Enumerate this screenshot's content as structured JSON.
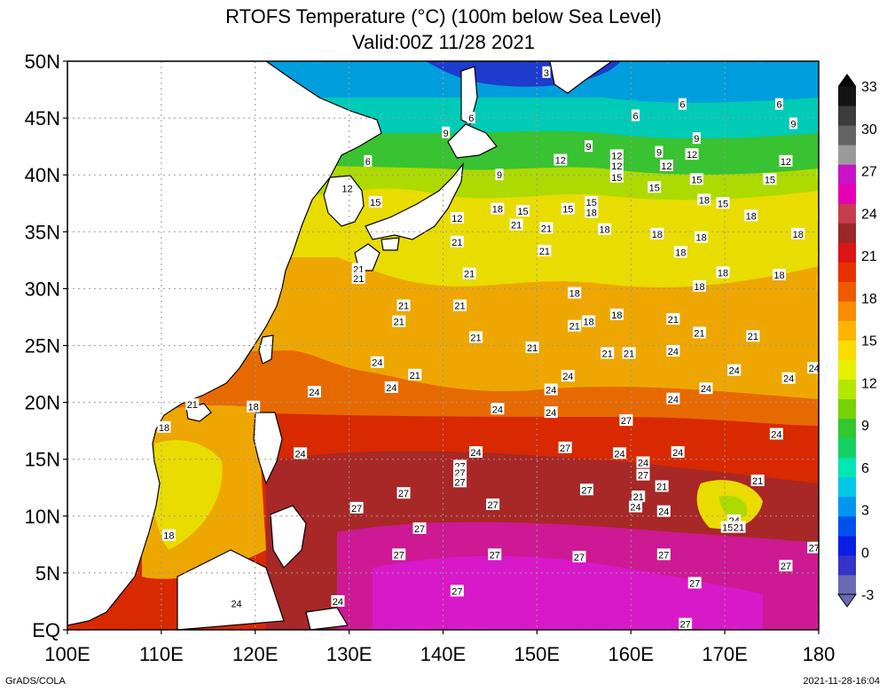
{
  "title_line1": "RTOFS Temperature (°C) (100m below Sea Level)",
  "title_line2": "Valid:00Z 11/28 2021",
  "credit": "GrADS/COLA",
  "timestamp": "2021-11-28-16:04",
  "map": {
    "lon_range": [
      100,
      180
    ],
    "lat_range": [
      0,
      50
    ],
    "lon_ticks": [
      "100E",
      "110E",
      "120E",
      "130E",
      "140E",
      "150E",
      "160E",
      "170E",
      "180"
    ],
    "lat_ticks": [
      "EQ",
      "5N",
      "10N",
      "15N",
      "20N",
      "25N",
      "30N",
      "35N",
      "40N",
      "45N",
      "50N"
    ],
    "grid": "dotted"
  },
  "colorbar": {
    "labels": [
      "-3",
      "0",
      "3",
      "6",
      "9",
      "12",
      "15",
      "18",
      "21",
      "24",
      "27",
      "30",
      "33"
    ],
    "colors": [
      "#6a6ab4",
      "#3434c8",
      "#0a1ee6",
      "#0050f0",
      "#0096f0",
      "#00c8e6",
      "#00e6b4",
      "#14d264",
      "#32c832",
      "#78d20a",
      "#b4e600",
      "#e6f000",
      "#fadc00",
      "#ffb400",
      "#fa8c00",
      "#f05a00",
      "#e63200",
      "#dc1414",
      "#9b2828",
      "#c83c50",
      "#e600b4",
      "#c814c8",
      "#9b9b9b",
      "#646464",
      "#3c3c3c",
      "#141414"
    ]
  },
  "contour_labels": [
    {
      "v": "3",
      "lon": 151.0,
      "lat": 49.0
    },
    {
      "v": "6",
      "lon": 143.0,
      "lat": 45.0
    },
    {
      "v": "6",
      "lon": 160.5,
      "lat": 45.2
    },
    {
      "v": "6",
      "lon": 165.5,
      "lat": 46.2
    },
    {
      "v": "6",
      "lon": 175.8,
      "lat": 46.2
    },
    {
      "v": "9",
      "lon": 177.3,
      "lat": 44.5
    },
    {
      "v": "9",
      "lon": 140.3,
      "lat": 43.7
    },
    {
      "v": "6",
      "lon": 132.0,
      "lat": 41.2
    },
    {
      "v": "9",
      "lon": 155.5,
      "lat": 42.5
    },
    {
      "v": "9",
      "lon": 163.0,
      "lat": 42.0
    },
    {
      "v": "9",
      "lon": 167.0,
      "lat": 43.2
    },
    {
      "v": "12",
      "lon": 158.5,
      "lat": 41.7
    },
    {
      "v": "12",
      "lon": 166.5,
      "lat": 41.8
    },
    {
      "v": "12",
      "lon": 176.5,
      "lat": 41.2
    },
    {
      "v": "12",
      "lon": 152.5,
      "lat": 41.3
    },
    {
      "v": "12",
      "lon": 158.5,
      "lat": 40.8
    },
    {
      "v": "12",
      "lon": 163.8,
      "lat": 40.8
    },
    {
      "v": "9",
      "lon": 146.0,
      "lat": 40.0
    },
    {
      "v": "15",
      "lon": 158.5,
      "lat": 39.8
    },
    {
      "v": "15",
      "lon": 167.0,
      "lat": 39.6
    },
    {
      "v": "15",
      "lon": 174.8,
      "lat": 39.6
    },
    {
      "v": "15",
      "lon": 162.5,
      "lat": 38.9
    },
    {
      "v": "12",
      "lon": 129.8,
      "lat": 38.8
    },
    {
      "v": "15",
      "lon": 132.8,
      "lat": 37.6
    },
    {
      "v": "15",
      "lon": 155.8,
      "lat": 37.6
    },
    {
      "v": "18",
      "lon": 167.8,
      "lat": 37.8
    },
    {
      "v": "15",
      "lon": 169.8,
      "lat": 37.5
    },
    {
      "v": "18",
      "lon": 145.8,
      "lat": 37.0
    },
    {
      "v": "15",
      "lon": 148.5,
      "lat": 36.8
    },
    {
      "v": "15",
      "lon": 153.3,
      "lat": 37.0
    },
    {
      "v": "18",
      "lon": 155.8,
      "lat": 36.7
    },
    {
      "v": "18",
      "lon": 172.8,
      "lat": 36.4
    },
    {
      "v": "12",
      "lon": 141.5,
      "lat": 36.2
    },
    {
      "v": "21",
      "lon": 147.8,
      "lat": 35.6
    },
    {
      "v": "21",
      "lon": 151.0,
      "lat": 35.3
    },
    {
      "v": "18",
      "lon": 157.2,
      "lat": 35.2
    },
    {
      "v": "18",
      "lon": 162.8,
      "lat": 34.8
    },
    {
      "v": "18",
      "lon": 167.5,
      "lat": 34.5
    },
    {
      "v": "18",
      "lon": 177.8,
      "lat": 34.8
    },
    {
      "v": "21",
      "lon": 141.5,
      "lat": 34.1
    },
    {
      "v": "21",
      "lon": 150.8,
      "lat": 33.3
    },
    {
      "v": "18",
      "lon": 165.3,
      "lat": 33.2
    },
    {
      "v": "21",
      "lon": 131.0,
      "lat": 31.7
    },
    {
      "v": "21",
      "lon": 131.0,
      "lat": 30.9
    },
    {
      "v": "21",
      "lon": 142.8,
      "lat": 31.3
    },
    {
      "v": "18",
      "lon": 169.8,
      "lat": 31.4
    },
    {
      "v": "18",
      "lon": 175.8,
      "lat": 31.2
    },
    {
      "v": "18",
      "lon": 167.3,
      "lat": 30.2
    },
    {
      "v": "18",
      "lon": 154.0,
      "lat": 29.6
    },
    {
      "v": "21",
      "lon": 135.8,
      "lat": 28.5
    },
    {
      "v": "21",
      "lon": 141.8,
      "lat": 28.5
    },
    {
      "v": "21",
      "lon": 135.3,
      "lat": 27.1
    },
    {
      "v": "18",
      "lon": 158.5,
      "lat": 27.7
    },
    {
      "v": "21",
      "lon": 164.5,
      "lat": 27.3
    },
    {
      "v": "18",
      "lon": 155.5,
      "lat": 27.1
    },
    {
      "v": "21",
      "lon": 154.0,
      "lat": 26.7
    },
    {
      "v": "21",
      "lon": 167.3,
      "lat": 26.1
    },
    {
      "v": "21",
      "lon": 173.0,
      "lat": 25.8
    },
    {
      "v": "21",
      "lon": 143.5,
      "lat": 25.7
    },
    {
      "v": "21",
      "lon": 149.5,
      "lat": 24.8
    },
    {
      "v": "21",
      "lon": 157.5,
      "lat": 24.3
    },
    {
      "v": "21",
      "lon": 159.8,
      "lat": 24.3
    },
    {
      "v": "24",
      "lon": 164.5,
      "lat": 24.5
    },
    {
      "v": "24",
      "lon": 133.0,
      "lat": 23.5
    },
    {
      "v": "21",
      "lon": 137.0,
      "lat": 22.4
    },
    {
      "v": "24",
      "lon": 153.3,
      "lat": 22.3
    },
    {
      "v": "24",
      "lon": 171.0,
      "lat": 22.8
    },
    {
      "v": "24",
      "lon": 179.5,
      "lat": 23.0
    },
    {
      "v": "24",
      "lon": 176.8,
      "lat": 22.1
    },
    {
      "v": "24",
      "lon": 134.5,
      "lat": 21.3
    },
    {
      "v": "24",
      "lon": 151.5,
      "lat": 21.1
    },
    {
      "v": "24",
      "lon": 168.0,
      "lat": 21.2
    },
    {
      "v": "24",
      "lon": 126.3,
      "lat": 20.9
    },
    {
      "v": "24",
      "lon": 164.5,
      "lat": 20.3
    },
    {
      "v": "21",
      "lon": 113.3,
      "lat": 19.8
    },
    {
      "v": "18",
      "lon": 119.8,
      "lat": 19.6
    },
    {
      "v": "24",
      "lon": 145.8,
      "lat": 19.4
    },
    {
      "v": "24",
      "lon": 151.5,
      "lat": 19.1
    },
    {
      "v": "18",
      "lon": 110.3,
      "lat": 17.8
    },
    {
      "v": "27",
      "lon": 159.5,
      "lat": 18.4
    },
    {
      "v": "24",
      "lon": 175.5,
      "lat": 17.2
    },
    {
      "v": "24",
      "lon": 124.8,
      "lat": 15.5
    },
    {
      "v": "24",
      "lon": 143.5,
      "lat": 15.6
    },
    {
      "v": "27",
      "lon": 153.0,
      "lat": 16.0
    },
    {
      "v": "24",
      "lon": 158.8,
      "lat": 15.5
    },
    {
      "v": "24",
      "lon": 165.0,
      "lat": 15.6
    },
    {
      "v": "27",
      "lon": 141.8,
      "lat": 14.4
    },
    {
      "v": "24",
      "lon": 161.3,
      "lat": 14.7
    },
    {
      "v": "27",
      "lon": 141.8,
      "lat": 13.8
    },
    {
      "v": "27",
      "lon": 161.3,
      "lat": 13.6
    },
    {
      "v": "27",
      "lon": 141.8,
      "lat": 13.0
    },
    {
      "v": "21",
      "lon": 163.3,
      "lat": 12.6
    },
    {
      "v": "27",
      "lon": 135.8,
      "lat": 12.0
    },
    {
      "v": "27",
      "lon": 155.3,
      "lat": 12.3
    },
    {
      "v": "21",
      "lon": 160.8,
      "lat": 11.7
    },
    {
      "v": "21",
      "lon": 173.5,
      "lat": 13.1
    },
    {
      "v": "27",
      "lon": 130.8,
      "lat": 10.7
    },
    {
      "v": "27",
      "lon": 145.3,
      "lat": 11.0
    },
    {
      "v": "24",
      "lon": 160.5,
      "lat": 10.8
    },
    {
      "v": "24",
      "lon": 163.5,
      "lat": 10.4
    },
    {
      "v": "24",
      "lon": 171.0,
      "lat": 9.6
    },
    {
      "v": "15",
      "lon": 170.3,
      "lat": 9.0
    },
    {
      "v": "21",
      "lon": 171.5,
      "lat": 9.0
    },
    {
      "v": "27",
      "lon": 137.5,
      "lat": 8.9
    },
    {
      "v": "18",
      "lon": 110.8,
      "lat": 8.3
    },
    {
      "v": "27",
      "lon": 135.3,
      "lat": 6.6
    },
    {
      "v": "27",
      "lon": 145.5,
      "lat": 6.6
    },
    {
      "v": "27",
      "lon": 154.5,
      "lat": 6.4
    },
    {
      "v": "27",
      "lon": 163.5,
      "lat": 6.6
    },
    {
      "v": "27",
      "lon": 179.5,
      "lat": 7.2
    },
    {
      "v": "27",
      "lon": 176.5,
      "lat": 5.6
    },
    {
      "v": "27",
      "lon": 166.8,
      "lat": 4.1
    },
    {
      "v": "27",
      "lon": 141.5,
      "lat": 3.4
    },
    {
      "v": "24",
      "lon": 118.0,
      "lat": 2.3
    },
    {
      "v": "24",
      "lon": 128.8,
      "lat": 2.5
    },
    {
      "v": "27",
      "lon": 165.8,
      "lat": 0.5
    }
  ]
}
